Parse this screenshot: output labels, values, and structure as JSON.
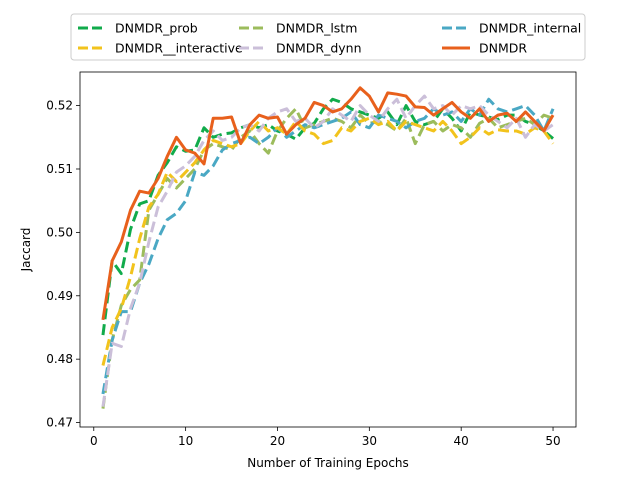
{
  "chart_data": {
    "type": "line",
    "xlabel": "Number of Training Epochs",
    "ylabel": "Jaccard",
    "xlim": [
      -1.5,
      52.5
    ],
    "ylim": [
      0.4693,
      0.5253
    ],
    "xticks": [
      0,
      10,
      20,
      30,
      40,
      50
    ],
    "yticks": [
      0.47,
      0.48,
      0.49,
      0.5,
      0.51,
      0.52
    ],
    "ytick_labels": [
      "0.47",
      "0.48",
      "0.49",
      "0.50",
      "0.51",
      "0.52"
    ],
    "legend_position": "top-center, above plot, 3 columns",
    "grid": false,
    "x": [
      1,
      2,
      3,
      4,
      5,
      6,
      7,
      8,
      9,
      10,
      11,
      12,
      13,
      14,
      15,
      16,
      17,
      18,
      19,
      20,
      21,
      22,
      23,
      24,
      25,
      26,
      27,
      28,
      29,
      30,
      31,
      32,
      33,
      34,
      35,
      36,
      37,
      38,
      39,
      40,
      41,
      42,
      43,
      44,
      45,
      46,
      47,
      48,
      49,
      50
    ],
    "series": [
      {
        "name": "DNMDR_prob",
        "color": "#11ab4b",
        "dash": "dashed",
        "values": [
          0.4838,
          0.4955,
          0.4935,
          0.5005,
          0.5045,
          0.505,
          0.509,
          0.511,
          0.5135,
          0.5128,
          0.513,
          0.5165,
          0.515,
          0.5155,
          0.5157,
          0.5165,
          0.517,
          0.5165,
          0.517,
          0.516,
          0.5155,
          0.5147,
          0.5165,
          0.5172,
          0.5195,
          0.521,
          0.5205,
          0.5195,
          0.519,
          0.5185,
          0.518,
          0.519,
          0.517,
          0.52,
          0.5175,
          0.517,
          0.5175,
          0.5195,
          0.518,
          0.516,
          0.519,
          0.5185,
          0.5182,
          0.5178,
          0.5185,
          0.5185,
          0.5175,
          0.517,
          0.516,
          0.5148
        ]
      },
      {
        "name": "DNMDR_lstm",
        "color": "#9cbc5c",
        "dash": "dashed",
        "values": [
          0.4722,
          0.483,
          0.4885,
          0.491,
          0.4925,
          0.5035,
          0.506,
          0.5085,
          0.507,
          0.5085,
          0.51,
          0.513,
          0.514,
          0.5135,
          0.513,
          0.515,
          0.516,
          0.514,
          0.5125,
          0.516,
          0.518,
          0.5195,
          0.5165,
          0.517,
          0.5175,
          0.518,
          0.5175,
          0.5165,
          0.5185,
          0.5172,
          0.5175,
          0.517,
          0.516,
          0.518,
          0.514,
          0.517,
          0.5175,
          0.516,
          0.517,
          0.5165,
          0.515,
          0.5172,
          0.518,
          0.5165,
          0.517,
          0.5175,
          0.518,
          0.517,
          0.5185,
          0.518
        ]
      },
      {
        "name": "DNMDR_internal",
        "color": "#4aa8c4",
        "dash": "dashed",
        "values": [
          0.4745,
          0.483,
          0.4875,
          0.4875,
          0.492,
          0.495,
          0.499,
          0.502,
          0.503,
          0.505,
          0.5095,
          0.509,
          0.5105,
          0.513,
          0.514,
          0.5145,
          0.515,
          0.514,
          0.515,
          0.5165,
          0.515,
          0.516,
          0.517,
          0.5165,
          0.517,
          0.5175,
          0.518,
          0.519,
          0.517,
          0.5165,
          0.5185,
          0.518,
          0.5175,
          0.5165,
          0.5175,
          0.518,
          0.5195,
          0.5185,
          0.519,
          0.5175,
          0.5195,
          0.5185,
          0.521,
          0.5195,
          0.519,
          0.5195,
          0.52,
          0.5185,
          0.516,
          0.5195
        ]
      },
      {
        "name": "DNMDR__interactive",
        "color": "#f2c31c",
        "dash": "dashed",
        "values": [
          0.479,
          0.485,
          0.488,
          0.493,
          0.499,
          0.504,
          0.506,
          0.5095,
          0.508,
          0.5095,
          0.511,
          0.513,
          0.5145,
          0.514,
          0.5135,
          0.514,
          0.516,
          0.5175,
          0.516,
          0.5165,
          0.5155,
          0.5175,
          0.516,
          0.5155,
          0.514,
          0.5145,
          0.5165,
          0.516,
          0.5175,
          0.518,
          0.517,
          0.5175,
          0.516,
          0.5175,
          0.517,
          0.5165,
          0.516,
          0.5175,
          0.516,
          0.514,
          0.515,
          0.5165,
          0.5155,
          0.5162,
          0.516,
          0.516,
          0.5155,
          0.5165,
          0.516,
          0.514
        ]
      },
      {
        "name": "DNMDR_dynn",
        "color": "#cbbfd9",
        "dash": "dashed",
        "values": [
          0.4725,
          0.4825,
          0.482,
          0.488,
          0.492,
          0.4985,
          0.504,
          0.5065,
          0.5095,
          0.5105,
          0.512,
          0.5145,
          0.516,
          0.5145,
          0.515,
          0.5165,
          0.517,
          0.516,
          0.518,
          0.519,
          0.5195,
          0.5175,
          0.518,
          0.5165,
          0.5175,
          0.5195,
          0.5185,
          0.5175,
          0.52,
          0.5185,
          0.5175,
          0.5195,
          0.521,
          0.518,
          0.52,
          0.5215,
          0.5195,
          0.52,
          0.5185,
          0.52,
          0.5195,
          0.52,
          0.5185,
          0.5175,
          0.5165,
          0.518,
          0.515,
          0.517,
          0.516,
          0.517
        ]
      },
      {
        "name": "DNMDR",
        "color": "#e8601c",
        "dash": "solid",
        "values": [
          0.4862,
          0.4955,
          0.4985,
          0.5035,
          0.5065,
          0.5062,
          0.5085,
          0.512,
          0.515,
          0.513,
          0.5125,
          0.5108,
          0.518,
          0.518,
          0.5182,
          0.514,
          0.517,
          0.5185,
          0.518,
          0.5182,
          0.5155,
          0.517,
          0.518,
          0.5205,
          0.52,
          0.519,
          0.5195,
          0.521,
          0.5228,
          0.5215,
          0.519,
          0.522,
          0.5218,
          0.5215,
          0.5198,
          0.5197,
          0.5185,
          0.5195,
          0.5205,
          0.519,
          0.518,
          0.5195,
          0.5175,
          0.5185,
          0.5188,
          0.5175,
          0.519,
          0.5175,
          0.516,
          0.5185
        ]
      }
    ]
  }
}
